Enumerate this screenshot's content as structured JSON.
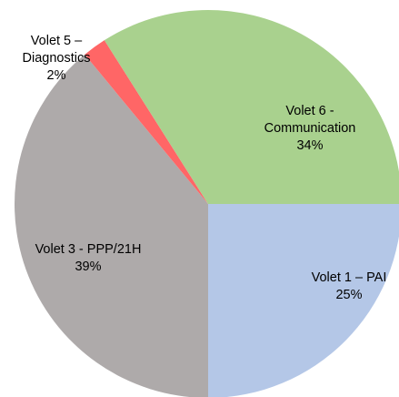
{
  "chart_data": {
    "type": "pie",
    "categories": [
      "Volet 1 – PAI",
      "Volet 3 - PPP/21H",
      "Volet 5 – Diagnostics",
      "Volet 6 - Communication"
    ],
    "values": [
      25,
      39,
      2,
      34
    ],
    "value_labels": [
      "25%",
      "39%",
      "2%",
      "34%"
    ],
    "colors": [
      "#b4c7e7",
      "#aeaaaa",
      "#ff6666",
      "#a9d18e"
    ]
  }
}
